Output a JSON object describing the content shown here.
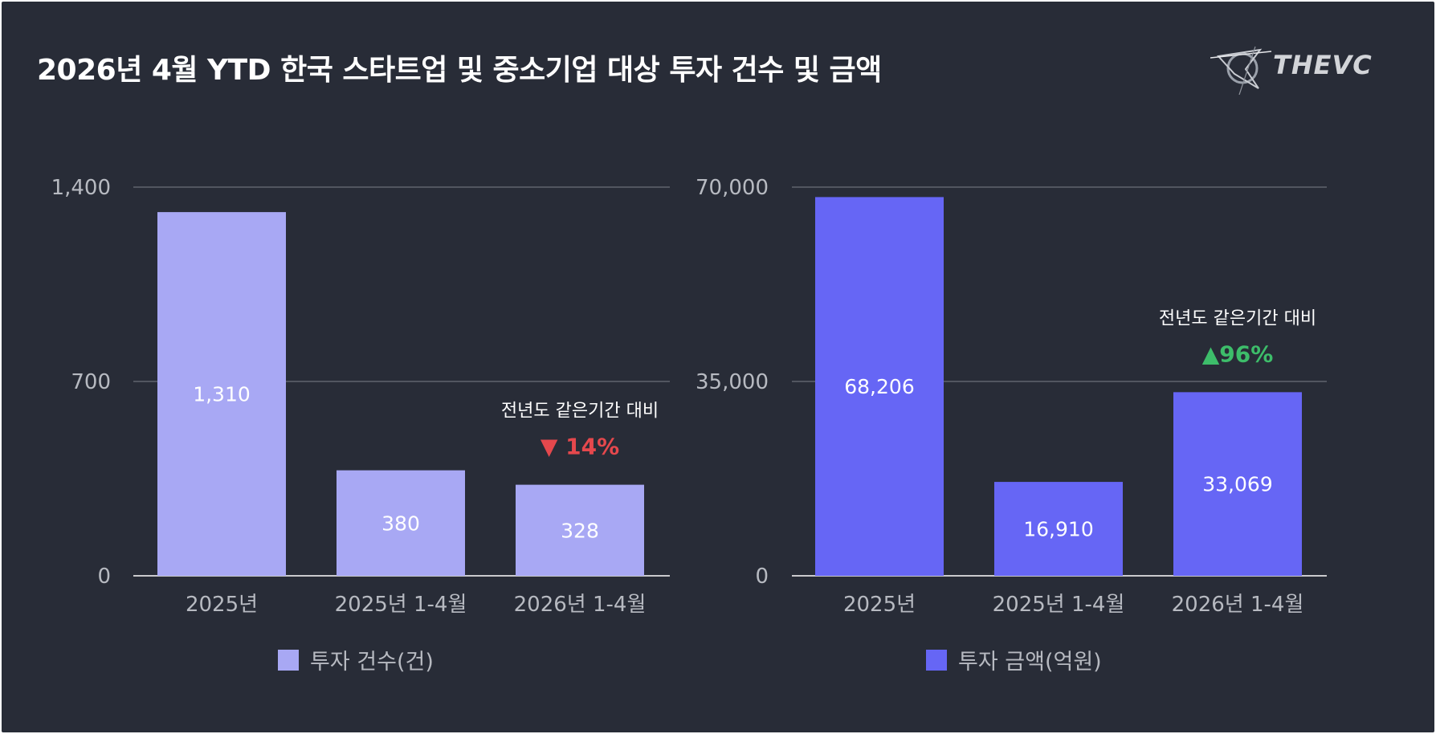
{
  "title": "2026년 4월 YTD 한국 스타트업 및 중소기업 대상 투자 건수 및 금액",
  "logo": {
    "text": "THEVC",
    "icon": "thevc-logo-icon"
  },
  "colors": {
    "background": "#282c37",
    "count_bar": "#a8a8f4",
    "amount_bar": "#6666f5",
    "down": "#e5484d",
    "up": "#3dbd6a",
    "axis_text": "#b7bac1",
    "grid": "#7d8088"
  },
  "chart_data": [
    {
      "type": "bar",
      "categories": [
        "2025년",
        "2025년 1-4월",
        "2026년 1-4월"
      ],
      "series": [
        {
          "name": "투자 건수(건)",
          "values": [
            1310,
            380,
            328
          ]
        }
      ],
      "value_labels": [
        "1,310",
        "380",
        "328"
      ],
      "yticks": [
        0,
        700,
        1400
      ],
      "ytick_labels": [
        "0",
        "700",
        "1,400"
      ],
      "ylim": [
        0,
        1400
      ],
      "grid": true,
      "legend": "bottom-center",
      "annotation": {
        "text": "전년도 같은기간 대비",
        "change": "▼ 14%",
        "direction": "down",
        "category": "2026년 1-4월"
      }
    },
    {
      "type": "bar",
      "categories": [
        "2025년",
        "2025년 1-4월",
        "2026년 1-4월"
      ],
      "series": [
        {
          "name": "투자 금액(억원)",
          "values": [
            68206,
            16910,
            33069
          ]
        }
      ],
      "value_labels": [
        "68,206",
        "16,910",
        "33,069"
      ],
      "yticks": [
        0,
        35000,
        70000
      ],
      "ytick_labels": [
        "0",
        "35,000",
        "70,000"
      ],
      "ylim": [
        0,
        70000
      ],
      "grid": true,
      "legend": "bottom-center",
      "annotation": {
        "text": "전년도 같은기간 대비",
        "change": "▲96%",
        "direction": "up",
        "category": "2026년 1-4월"
      }
    }
  ]
}
